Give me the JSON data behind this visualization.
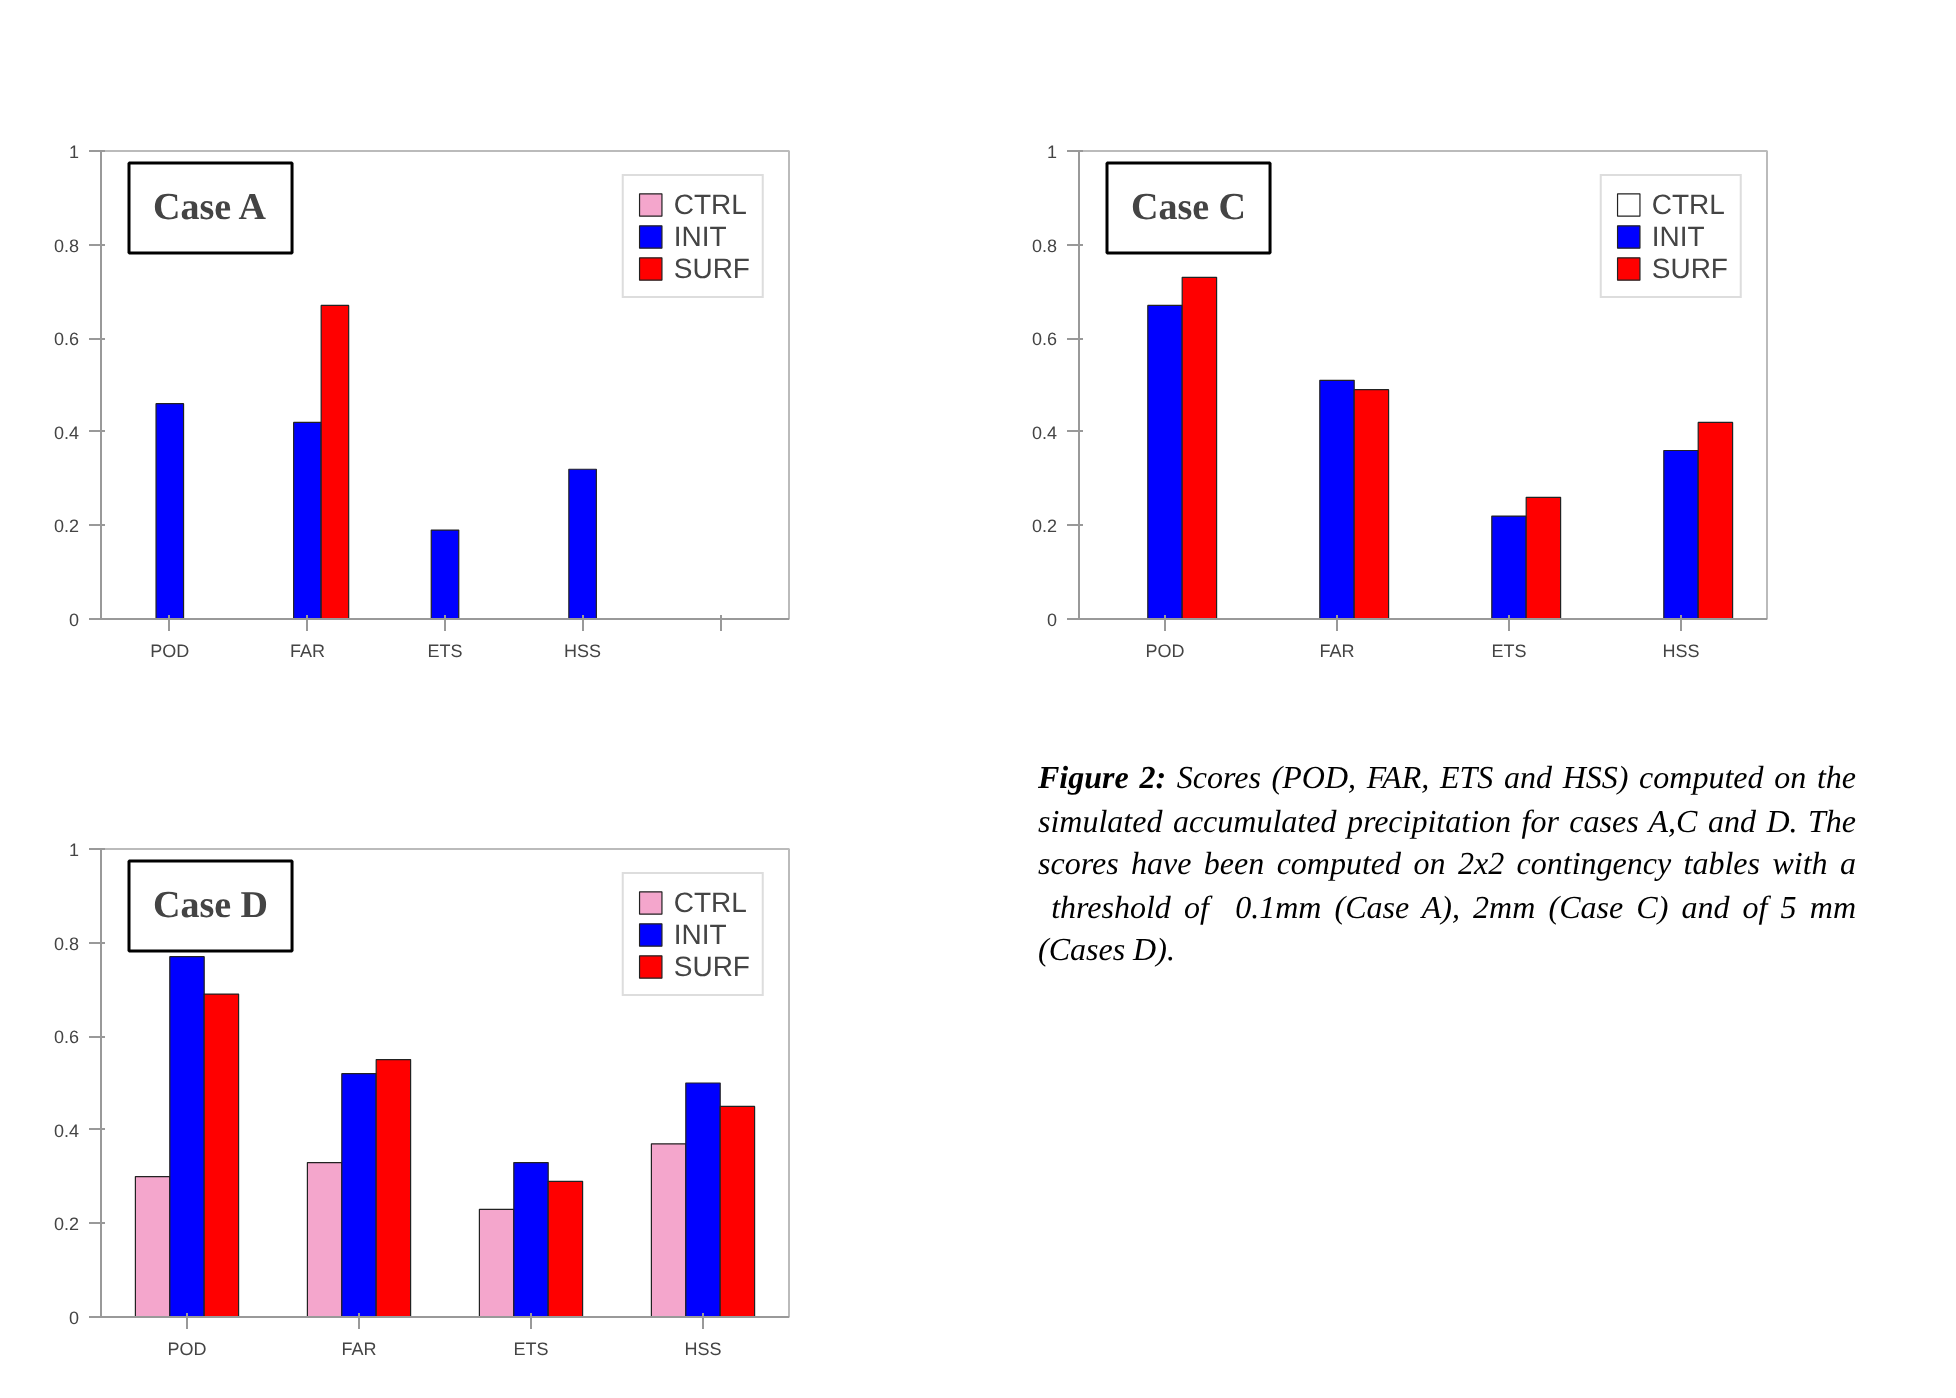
{
  "chart_data": [
    {
      "type": "bar",
      "annotations": [
        "Case A"
      ],
      "categories": [
        "POD",
        "FAR",
        "ETS",
        "HSS",
        null
      ],
      "ylim": [
        0,
        1
      ],
      "yticks": [
        0,
        0.2,
        0.4,
        0.6,
        0.8,
        1
      ],
      "grid": false,
      "legend": "top right",
      "series": [
        {
          "name": "CTRL",
          "color": "#f4a6cc",
          "values": [
            null,
            null,
            null,
            null,
            null
          ]
        },
        {
          "name": "INIT",
          "color": "#0000ff",
          "values": [
            0.46,
            0.42,
            0.19,
            0.32,
            null
          ]
        },
        {
          "name": "SURF",
          "color": "#ff0000",
          "values": [
            null,
            0.67,
            null,
            null,
            null
          ]
        }
      ]
    },
    {
      "type": "bar",
      "annotations": [
        "Case C"
      ],
      "categories": [
        "POD",
        "FAR",
        "ETS",
        "HSS"
      ],
      "ylim": [
        0,
        1
      ],
      "yticks": [
        0,
        0.2,
        0.4,
        0.6,
        0.8,
        1
      ],
      "grid": false,
      "legend": "top right",
      "series": [
        {
          "name": "CTRL",
          "color": "#ffffff",
          "values": [
            null,
            null,
            null,
            null
          ]
        },
        {
          "name": "INIT",
          "color": "#0000ff",
          "values": [
            0.67,
            0.51,
            0.22,
            0.36
          ]
        },
        {
          "name": "SURF",
          "color": "#ff0000",
          "values": [
            0.73,
            0.49,
            0.26,
            0.42
          ]
        }
      ]
    },
    {
      "type": "bar",
      "annotations": [
        "Case D"
      ],
      "categories": [
        "POD",
        "FAR",
        "ETS",
        "HSS"
      ],
      "ylim": [
        0,
        1
      ],
      "yticks": [
        0,
        0.2,
        0.4,
        0.6,
        0.8,
        1
      ],
      "grid": false,
      "legend": "top right",
      "series": [
        {
          "name": "CTRL",
          "color": "#f4a6cc",
          "values": [
            0.3,
            0.33,
            0.23,
            0.37
          ]
        },
        {
          "name": "INIT",
          "color": "#0000ff",
          "values": [
            0.77,
            0.52,
            0.33,
            0.5
          ]
        },
        {
          "name": "SURF",
          "color": "#ff0000",
          "values": [
            0.69,
            0.55,
            0.29,
            0.45
          ]
        }
      ]
    },
    {
      "type": "other",
      "annotations": [
        "Figure 2:",
        "Scores (POD, FAR, ETS and HSS) computed on the simulated accumulated precipitation for cases A,C and D. The scores have been computed on 2x2 contingency tables with a  threshold of  0.1mm (Case A), 2mm (Case C) and of 5 mm (Cases D)."
      ]
    }
  ]
}
